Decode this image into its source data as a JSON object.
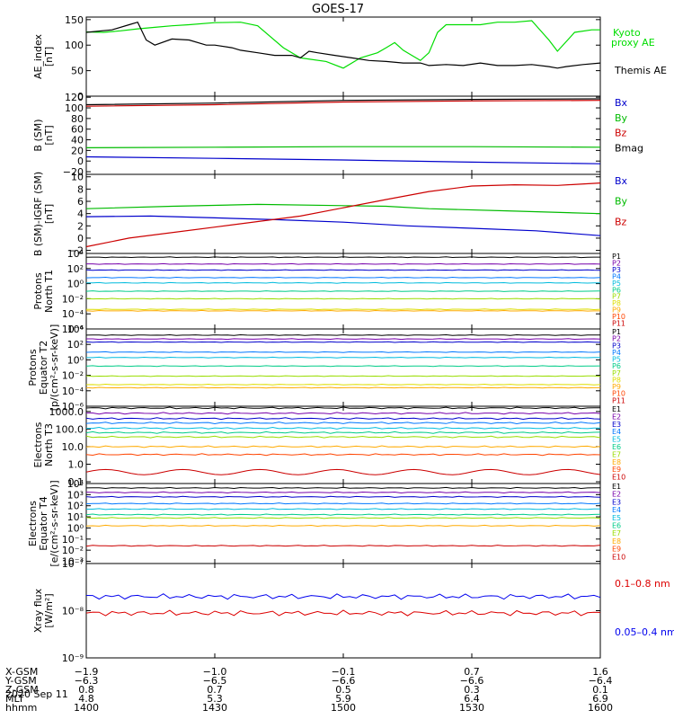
{
  "title": "GOES-17",
  "date": "2020 Sep 11",
  "chart_data": [
    {
      "id": "ae",
      "type": "line",
      "ylabel": [
        "AE_index",
        "[nT]"
      ],
      "scale": "linear",
      "ylim": [
        0,
        155
      ],
      "yticks": [
        "0",
        "50",
        "100",
        "150"
      ],
      "yticks_v": [
        0,
        50,
        100,
        150
      ],
      "series": [
        {
          "name": "Kyoto",
          "name2": "proxy AE",
          "color": "#00dd00",
          "x": [
            0,
            4,
            8,
            12,
            16,
            20,
            24,
            30,
            36,
            40,
            46,
            50,
            56,
            60,
            64,
            68,
            70,
            72,
            74,
            76,
            78,
            80,
            82,
            84,
            86,
            90,
            92,
            96,
            100,
            104,
            108,
            110,
            114,
            118,
            120
          ],
          "y": [
            126,
            125,
            128,
            132,
            135,
            138,
            140,
            144,
            145,
            138,
            95,
            75,
            68,
            55,
            75,
            85,
            95,
            105,
            90,
            80,
            70,
            85,
            125,
            140,
            140,
            140,
            140,
            145,
            145,
            148,
            110,
            88,
            125,
            130,
            130
          ]
        },
        {
          "name": "Themis AE",
          "color": "#000000",
          "x": [
            0,
            6,
            10,
            12,
            14,
            16,
            20,
            24,
            28,
            30,
            34,
            36,
            40,
            44,
            48,
            50,
            52,
            54,
            58,
            62,
            66,
            70,
            74,
            78,
            80,
            84,
            88,
            92,
            96,
            100,
            104,
            108,
            110,
            112,
            116,
            120
          ],
          "y": [
            125,
            130,
            140,
            145,
            110,
            100,
            112,
            110,
            100,
            100,
            95,
            90,
            85,
            80,
            80,
            75,
            88,
            85,
            80,
            75,
            70,
            68,
            65,
            65,
            60,
            62,
            60,
            65,
            60,
            60,
            62,
            58,
            55,
            58,
            62,
            65
          ]
        }
      ]
    },
    {
      "id": "bsm",
      "type": "line",
      "ylabel": [
        "B (SM)",
        "[nT]"
      ],
      "scale": "linear",
      "ylim": [
        -25,
        122
      ],
      "yticks": [
        "−20",
        "0",
        "20",
        "40",
        "60",
        "80",
        "100",
        "120"
      ],
      "yticks_v": [
        -20,
        0,
        20,
        40,
        60,
        80,
        100,
        120
      ],
      "series": [
        {
          "name": "Bx",
          "color": "#0000cc",
          "x": [
            0,
            30,
            60,
            90,
            120
          ],
          "y": [
            8,
            5,
            2,
            -2,
            -5
          ]
        },
        {
          "name": "By",
          "color": "#00bb00",
          "x": [
            0,
            30,
            60,
            90,
            120
          ],
          "y": [
            25,
            26,
            27,
            27,
            26
          ]
        },
        {
          "name": "Bz",
          "color": "#cc0000",
          "x": [
            0,
            30,
            60,
            90,
            120
          ],
          "y": [
            103,
            106,
            111,
            113,
            114
          ]
        },
        {
          "name": "Bmag",
          "color": "#000000",
          "x": [
            0,
            30,
            60,
            90,
            120
          ],
          "y": [
            106,
            109,
            114,
            116,
            117
          ]
        }
      ]
    },
    {
      "id": "bigrf",
      "type": "line",
      "ylabel": [
        "B (SM)-IGRF (SM)",
        "[nT]"
      ],
      "scale": "linear",
      "ylim": [
        -2.5,
        10.4
      ],
      "yticks": [
        "−2",
        "0",
        "2",
        "4",
        "6",
        "8",
        "10"
      ],
      "yticks_v": [
        -2,
        0,
        2,
        4,
        6,
        8,
        10
      ],
      "series": [
        {
          "name": "Bx",
          "color": "#0000cc",
          "x": [
            0,
            15,
            30,
            45,
            60,
            75,
            90,
            105,
            120
          ],
          "y": [
            3.5,
            3.6,
            3.3,
            3.0,
            2.6,
            2.0,
            1.6,
            1.2,
            0.4
          ]
        },
        {
          "name": "By",
          "color": "#00bb00",
          "x": [
            0,
            20,
            40,
            60,
            70,
            80,
            100,
            120
          ],
          "y": [
            4.8,
            5.2,
            5.5,
            5.3,
            5.2,
            4.8,
            4.4,
            4.0
          ]
        },
        {
          "name": "Bz",
          "color": "#cc0000",
          "x": [
            0,
            10,
            30,
            50,
            70,
            80,
            90,
            100,
            110,
            120
          ],
          "y": [
            -1.4,
            0,
            1.8,
            3.6,
            6.3,
            7.6,
            8.5,
            8.7,
            8.6,
            9.0
          ]
        }
      ]
    },
    {
      "id": "pnorth",
      "type": "line",
      "ylabel": [
        "Protons",
        "North T1"
      ],
      "scale": "log",
      "ylim": [
        -6,
        4
      ],
      "yticks": [
        "10⁴",
        "10²",
        "10⁰",
        "10⁻²",
        "10⁻⁴",
        "10⁻⁶"
      ],
      "yticks_v": [
        4,
        2,
        0,
        -2,
        -4,
        -6
      ],
      "series": [
        {
          "name": "P1",
          "color": "#000000",
          "y": 3.5
        },
        {
          "name": "P2",
          "color": "#7700aa",
          "y": 2.6
        },
        {
          "name": "P3",
          "color": "#0000cc",
          "y": 1.8
        },
        {
          "name": "P4",
          "color": "#0077ff",
          "y": 0.8
        },
        {
          "name": "P5",
          "color": "#00bbdd",
          "y": 0.1
        },
        {
          "name": "P6",
          "color": "#00cc88",
          "y": -1.0
        },
        {
          "name": "P7",
          "color": "#99dd00",
          "y": -2.0
        },
        {
          "name": "P8",
          "color": "#dddd00",
          "y": -3.4
        },
        {
          "name": "P9",
          "color": "#ffaa00",
          "y": -3.6
        },
        {
          "name": "P10",
          "color": "#ff4400",
          "y": null
        },
        {
          "name": "P11",
          "color": "#cc0000",
          "y": null
        }
      ]
    },
    {
      "id": "pequator",
      "type": "line",
      "ylabel": [
        "Protons",
        "Equator T2",
        "[p/(cm²-s-sr-keV)]"
      ],
      "scale": "log",
      "ylim": [
        -6,
        4
      ],
      "yticks": [
        "10⁴",
        "10²",
        "10⁰",
        "10⁻²",
        "10⁻⁴",
        "10⁻⁶"
      ],
      "yticks_v": [
        4,
        2,
        0,
        -2,
        -4,
        -6
      ],
      "series": [
        {
          "name": "P1",
          "color": "#000000",
          "y": 3.2
        },
        {
          "name": "P2",
          "color": "#7700aa",
          "y": 2.7
        },
        {
          "name": "P3",
          "color": "#0000cc",
          "y": 2.3
        },
        {
          "name": "P4",
          "color": "#0077ff",
          "y": 1.0
        },
        {
          "name": "P5",
          "color": "#00bbdd",
          "y": 0.3
        },
        {
          "name": "P6",
          "color": "#00cc88",
          "y": -0.8
        },
        {
          "name": "P7",
          "color": "#99dd00",
          "y": -2.1
        },
        {
          "name": "P8",
          "color": "#dddd00",
          "y": -3.2
        },
        {
          "name": "P9",
          "color": "#ffaa00",
          "y": -3.6
        },
        {
          "name": "P10",
          "color": "#ff4400",
          "y": null
        },
        {
          "name": "P11",
          "color": "#cc0000",
          "y": null
        }
      ]
    },
    {
      "id": "enorth",
      "type": "line",
      "ylabel": [
        "Electrons",
        "North T3"
      ],
      "scale": "log",
      "ylim": [
        -1.1,
        3.3
      ],
      "yticks": [
        "1000.0",
        "100.0",
        "10.0",
        "1.0",
        "0.1"
      ],
      "yticks_v": [
        3,
        2,
        1,
        0,
        -1
      ],
      "series": [
        {
          "name": "E1",
          "color": "#000000",
          "y": 3.2
        },
        {
          "name": "E2",
          "color": "#7700aa",
          "y": 2.9
        },
        {
          "name": "E3",
          "color": "#0000cc",
          "y": 2.6
        },
        {
          "name": "E4",
          "color": "#0077ff",
          "y": 2.35
        },
        {
          "name": "E5",
          "color": "#00bbdd",
          "y": 2.05
        },
        {
          "name": "E6",
          "color": "#00cc88",
          "y": 1.8
        },
        {
          "name": "E7",
          "color": "#99dd00",
          "y": 1.55
        },
        {
          "name": "E8",
          "color": "#ffaa00",
          "y": 1.0
        },
        {
          "name": "E9",
          "color": "#ff4400",
          "y": 0.55
        },
        {
          "name": "E10",
          "color": "#cc0000",
          "y": -0.45
        }
      ]
    },
    {
      "id": "eequator",
      "type": "line",
      "ylabel": [
        "Electrons",
        "Equator T4",
        "[e/(cm²-s-sr-keV)]"
      ],
      "scale": "log",
      "ylim": [
        -3.2,
        4
      ],
      "yticks": [
        "10⁴",
        "10³",
        "10²",
        "10¹",
        "10⁰",
        "10⁻¹",
        "10⁻²",
        "10⁻³"
      ],
      "yticks_v": [
        4,
        3,
        2,
        1,
        0,
        -1,
        -2,
        -3
      ],
      "series": [
        {
          "name": "E1",
          "color": "#000000",
          "y": 3.6
        },
        {
          "name": "E2",
          "color": "#7700aa",
          "y": 3.2
        },
        {
          "name": "E3",
          "color": "#0000cc",
          "y": 2.8
        },
        {
          "name": "E4",
          "color": "#0077ff",
          "y": 2.2
        },
        {
          "name": "E5",
          "color": "#00bbdd",
          "y": 1.7
        },
        {
          "name": "E6",
          "color": "#00cc88",
          "y": 1.2
        },
        {
          "name": "E7",
          "color": "#99dd00",
          "y": 0.9
        },
        {
          "name": "E8",
          "color": "#ffaa00",
          "y": 0.2
        },
        {
          "name": "E9",
          "color": "#ff4400",
          "y": null
        },
        {
          "name": "E10",
          "color": "#cc0000",
          "y": -1.6
        }
      ]
    },
    {
      "id": "xray",
      "type": "line",
      "ylabel": [
        "Xray flux",
        "[W/m²]"
      ],
      "scale": "log",
      "ylim": [
        -9,
        -7
      ],
      "yticks": [
        "10⁻⁷",
        "10⁻⁸",
        "10⁻⁹"
      ],
      "yticks_v": [
        -7,
        -8,
        -9
      ],
      "series": [
        {
          "name": "0.1–0.8 nm",
          "color": "#dd0000",
          "y": -8.05
        },
        {
          "name": "0.05–0.4 nm",
          "color": "#0000ee",
          "y": -7.7
        }
      ]
    }
  ],
  "xaxis": {
    "minutes": [
      0,
      30,
      60,
      90,
      120
    ],
    "rows": [
      {
        "label": "X-GSM",
        "values": [
          "−1.9",
          "−1.0",
          "−0.1",
          "0.7",
          "1.6"
        ]
      },
      {
        "label": "Y-GSM",
        "values": [
          "−6.3",
          "−6.5",
          "−6.6",
          "−6.6",
          "−6.4"
        ]
      },
      {
        "label": "Z-GSM",
        "values": [
          "0.8",
          "0.7",
          "0.5",
          "0.3",
          "0.1"
        ]
      },
      {
        "label": "MLT",
        "values": [
          "4.8",
          "5.3",
          "5.9",
          "6.4",
          "6.9"
        ]
      },
      {
        "label": "hhmm",
        "values": [
          "1400",
          "1430",
          "1500",
          "1530",
          "1600"
        ]
      }
    ]
  }
}
